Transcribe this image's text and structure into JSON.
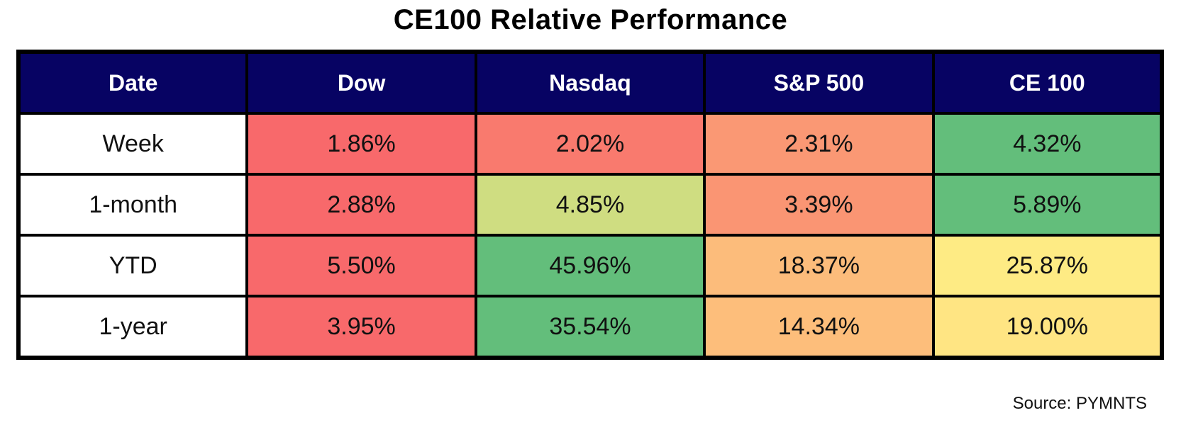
{
  "title": "CE100 Relative Performance",
  "source": "Source: PYMNTS",
  "colors": {
    "header_bg": "#070363",
    "header_text": "#ffffff",
    "border": "#000000",
    "row_label_bg": "#ffffff",
    "cell_text": "#111111",
    "scale_min_red": "#F8696B",
    "scale_mid_yellow": "#FFEB84",
    "scale_max_green": "#63BE7B"
  },
  "chart_data": {
    "type": "table",
    "subtype": "heatmap",
    "title": "CE100 Relative Performance",
    "columns": [
      "Date",
      "Dow",
      "Nasdaq",
      "S&P 500",
      "CE 100"
    ],
    "rows": [
      {
        "label": "Week",
        "cells": [
          {
            "value": "1.86%",
            "bg": "#F8696B"
          },
          {
            "value": "2.02%",
            "bg": "#F97A6E"
          },
          {
            "value": "2.31%",
            "bg": "#FA9874"
          },
          {
            "value": "4.32%",
            "bg": "#63BE7B"
          }
        ]
      },
      {
        "label": "1-month",
        "cells": [
          {
            "value": "2.88%",
            "bg": "#F8696B"
          },
          {
            "value": "4.85%",
            "bg": "#CFDD81"
          },
          {
            "value": "3.39%",
            "bg": "#FA9573"
          },
          {
            "value": "5.89%",
            "bg": "#63BE7B"
          }
        ]
      },
      {
        "label": "YTD",
        "cells": [
          {
            "value": "5.50%",
            "bg": "#F8696B"
          },
          {
            "value": "45.96%",
            "bg": "#63BE7B"
          },
          {
            "value": "18.37%",
            "bg": "#FCBC7B"
          },
          {
            "value": "25.87%",
            "bg": "#FEEB84"
          }
        ]
      },
      {
        "label": "1-year",
        "cells": [
          {
            "value": "3.95%",
            "bg": "#F8696B"
          },
          {
            "value": "35.54%",
            "bg": "#63BE7B"
          },
          {
            "value": "14.34%",
            "bg": "#FDBE7B"
          },
          {
            "value": "19.00%",
            "bg": "#FFE583"
          }
        ]
      }
    ],
    "legend": "none",
    "grid": true,
    "color_scale_note": "per-row red-yellow-green scale: row minimum = red, row maximum = green"
  }
}
